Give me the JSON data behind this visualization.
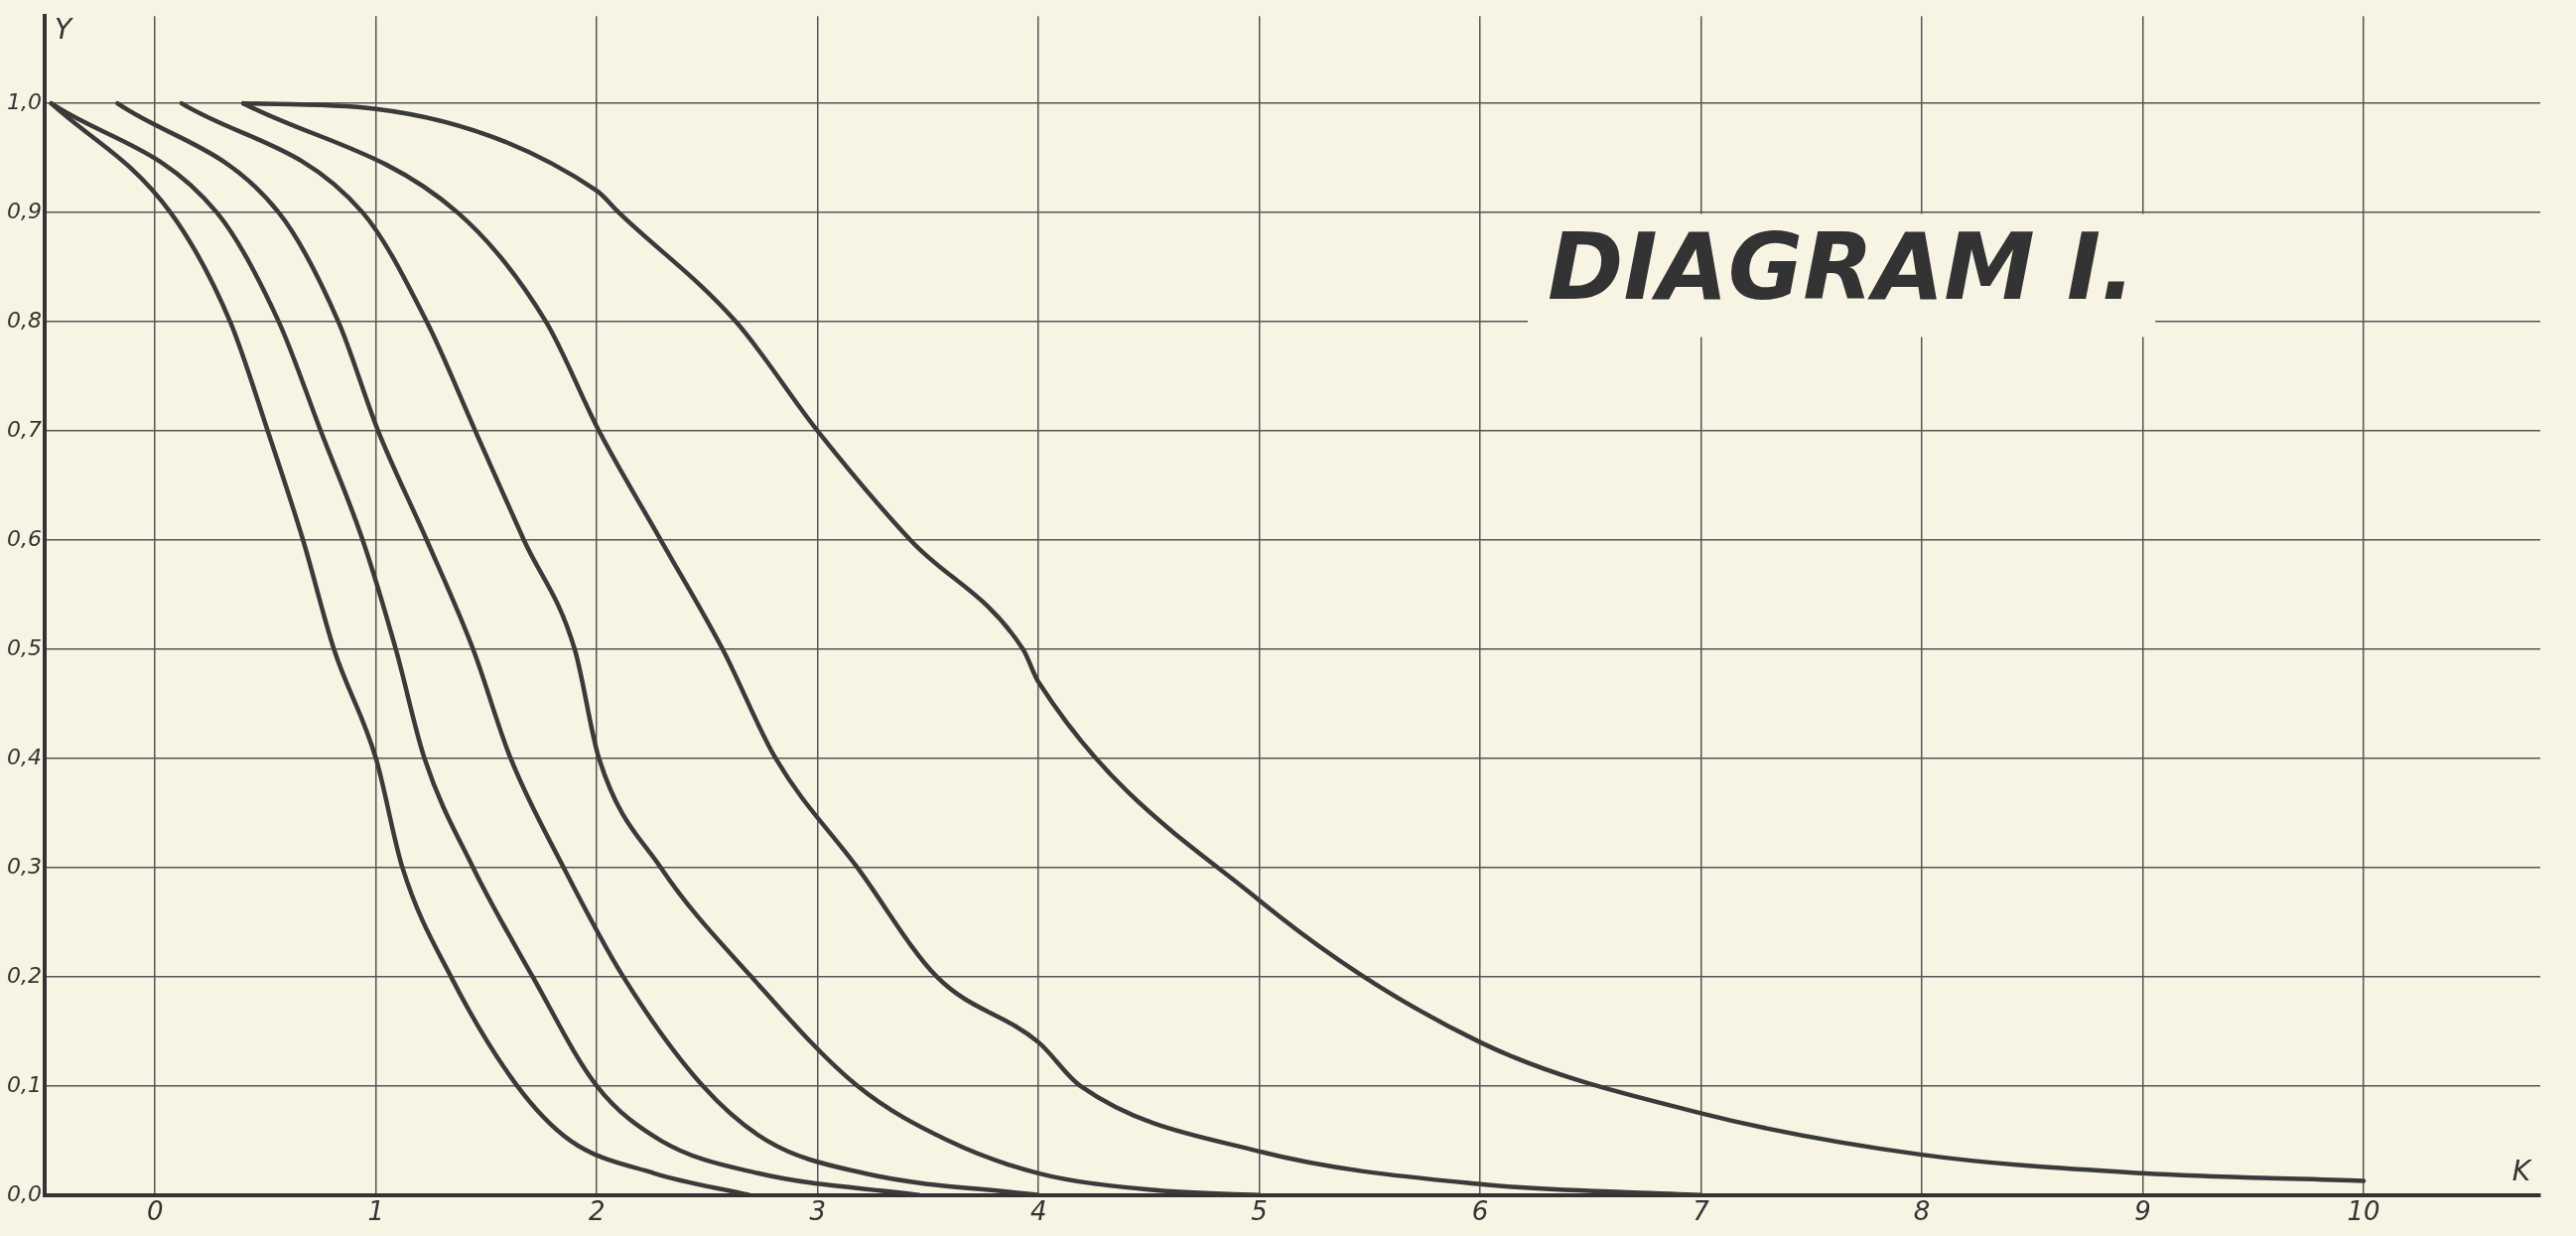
{
  "chart_data": {
    "type": "line",
    "title": "DIAGRAM I.",
    "xlabel": "K",
    "ylabel": "Y",
    "xlim": [
      -0.5,
      10.8
    ],
    "ylim": [
      0,
      1.08
    ],
    "xticks": [
      0,
      1,
      2,
      3,
      4,
      5,
      6,
      7,
      8,
      9,
      10
    ],
    "yticks": [
      {
        "value": 0,
        "label": "0,0"
      },
      {
        "value": 0.1,
        "label": "0,1"
      },
      {
        "value": 0.2,
        "label": "0,2"
      },
      {
        "value": 0.3,
        "label": "0,3"
      },
      {
        "value": 0.4,
        "label": "0,4"
      },
      {
        "value": 0.5,
        "label": "0,5"
      },
      {
        "value": 0.6,
        "label": "0,6"
      },
      {
        "value": 0.7,
        "label": "0,7"
      },
      {
        "value": 0.8,
        "label": "0,8"
      },
      {
        "value": 0.9,
        "label": "0,9"
      },
      {
        "value": 1,
        "label": "1,0"
      }
    ],
    "grid": true,
    "legend": false,
    "series": [
      {
        "color": "#3a3a3a",
        "x": [
          -0.47,
          0.07,
          0.34,
          0.51,
          0.67,
          0.81,
          1.0,
          1.12,
          1.34,
          1.64,
          1.88,
          2.26,
          2.69
        ],
        "values": [
          1.0,
          0.9,
          0.8,
          0.7,
          0.6,
          0.5,
          0.4,
          0.3,
          0.2,
          0.1,
          0.05,
          0.02,
          0.0
        ]
      },
      {
        "color": "#3a3a3a",
        "x": [
          -0.47,
          0.28,
          0.56,
          0.75,
          0.94,
          1.09,
          1.22,
          1.44,
          1.71,
          2.0,
          2.29,
          2.73,
          3.46
        ],
        "values": [
          1.0,
          0.9,
          0.8,
          0.7,
          0.6,
          0.5,
          0.4,
          0.3,
          0.2,
          0.1,
          0.05,
          0.02,
          0.0
        ]
      },
      {
        "color": "#3a3a3a",
        "x": [
          -0.17,
          0.56,
          0.83,
          1.01,
          1.23,
          1.44,
          1.61,
          1.85,
          2.12,
          2.48,
          2.77,
          3.21,
          4.0
        ],
        "values": [
          1.0,
          0.9,
          0.8,
          0.7,
          0.6,
          0.5,
          0.4,
          0.3,
          0.2,
          0.1,
          0.05,
          0.02,
          0.0
        ]
      },
      {
        "color": "#3a3a3a",
        "x": [
          0.12,
          0.94,
          1.23,
          1.45,
          1.67,
          1.9,
          2.01,
          2.29,
          2.7,
          3.18,
          3.59,
          4.0,
          4.5,
          5.0
        ],
        "values": [
          1.0,
          0.9,
          0.8,
          0.7,
          0.6,
          0.5,
          0.4,
          0.3,
          0.2,
          0.1,
          0.05,
          0.02,
          0.005,
          0.0
        ]
      },
      {
        "color": "#3a3a3a",
        "x": [
          0.4,
          1.37,
          1.77,
          2.01,
          2.29,
          2.57,
          2.81,
          3.18,
          3.54,
          4.0,
          4.19,
          5.0,
          6.0,
          7.0
        ],
        "values": [
          1.0,
          0.9,
          0.8,
          0.7,
          0.6,
          0.5,
          0.4,
          0.3,
          0.2,
          0.14,
          0.1,
          0.04,
          0.01,
          0.0
        ]
      },
      {
        "color": "#3a3a3a",
        "x": [
          0.4,
          1.0,
          2.0,
          2.1,
          2.63,
          3.0,
          3.42,
          3.93,
          4.0,
          5.0,
          6.0,
          7.0,
          8.0,
          9.0,
          10.0
        ],
        "values": [
          1.0,
          0.995,
          0.92,
          0.9,
          0.8,
          0.7,
          0.6,
          0.5,
          0.47,
          0.27,
          0.14,
          0.075,
          0.037,
          0.02,
          0.013
        ]
      }
    ]
  }
}
